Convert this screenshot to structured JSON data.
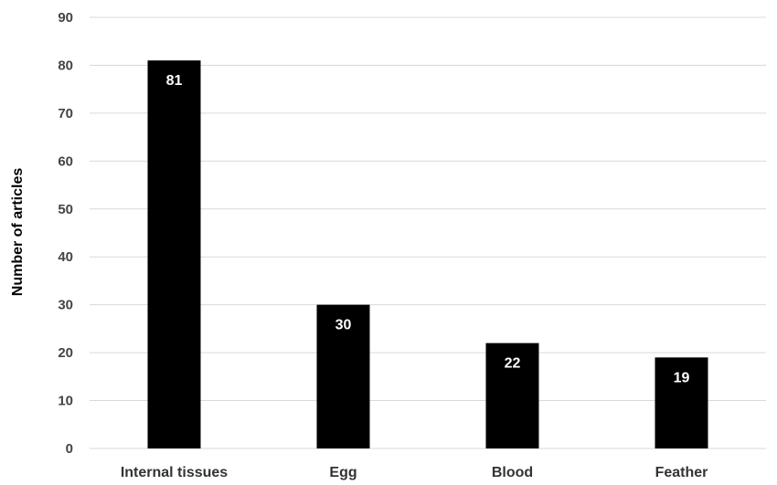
{
  "chart_data": {
    "type": "bar",
    "title": "",
    "xlabel": "",
    "ylabel": "Number of articles",
    "categories": [
      "Internal tissues",
      "Egg",
      "Blood",
      "Feather"
    ],
    "values": [
      81,
      30,
      22,
      19
    ],
    "data_labels": [
      "81",
      "30",
      "22",
      "19"
    ],
    "ylim": [
      0,
      90
    ],
    "yticks": [
      0,
      10,
      20,
      30,
      40,
      50,
      60,
      70,
      80,
      90
    ],
    "ytick_labels": [
      "0",
      "10",
      "20",
      "30",
      "40",
      "50",
      "60",
      "70",
      "80",
      "90"
    ],
    "grid": true,
    "legend": "none",
    "bar_color": "#000000",
    "grid_color": "#d9d9d9"
  }
}
